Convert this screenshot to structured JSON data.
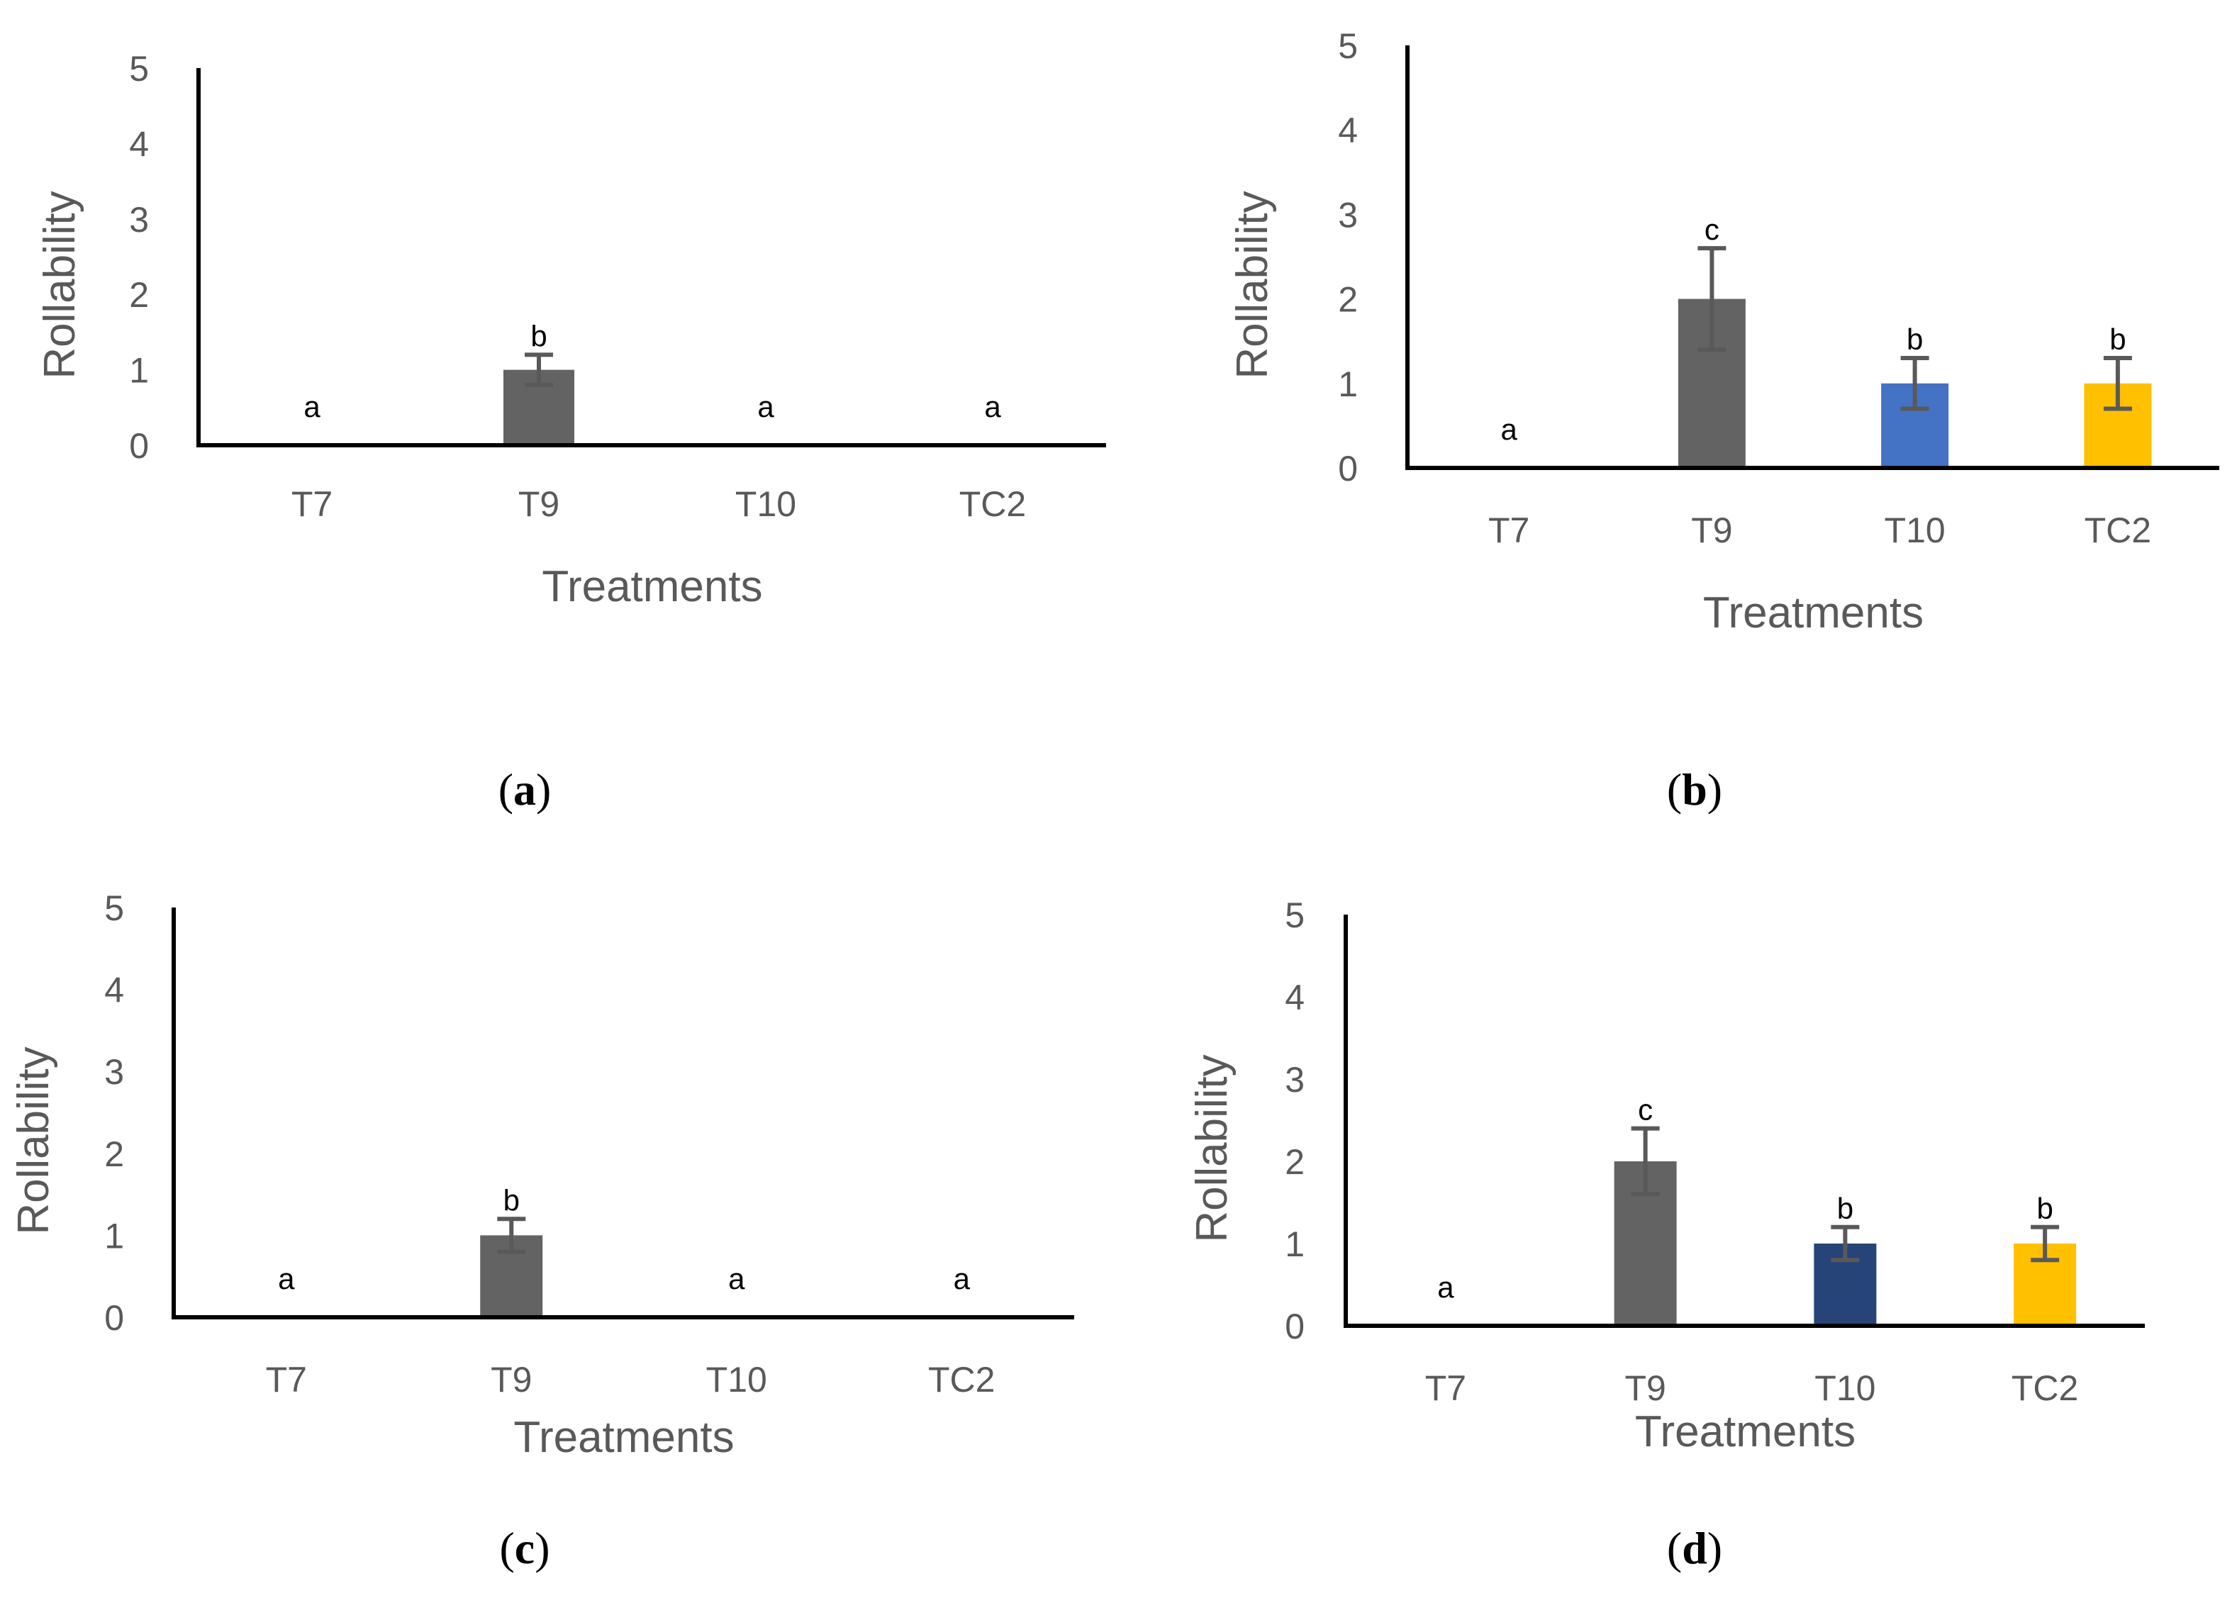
{
  "chart_data": [
    {
      "type": "bar",
      "panel": "a",
      "categories": [
        "T7",
        "T9",
        "T10",
        "TC2"
      ],
      "values": [
        0,
        1,
        0,
        0
      ],
      "error": [
        0,
        0.2,
        0,
        0
      ],
      "letters": [
        "a",
        "b",
        "a",
        "a"
      ],
      "colors": [
        "#636363",
        "#636363",
        "#636363",
        "#636363"
      ],
      "xlabel": "Treatments",
      "ylabel": "Rollability",
      "ylim": [
        0,
        5
      ],
      "yticks": [
        "0",
        "1",
        "2",
        "3",
        "4",
        "5"
      ],
      "grid": false
    },
    {
      "type": "bar",
      "panel": "b",
      "categories": [
        "T7",
        "T9",
        "T10",
        "TC2"
      ],
      "values": [
        0,
        2,
        1,
        1
      ],
      "error": [
        0,
        0.6,
        0.3,
        0.3
      ],
      "letters": [
        "a",
        "c",
        "b",
        "b"
      ],
      "colors": [
        "#636363",
        "#636363",
        "#4472c4",
        "#ffc000"
      ],
      "xlabel": "Treatments",
      "ylabel": "Rollability",
      "ylim": [
        0,
        5
      ],
      "yticks": [
        "0",
        "1",
        "2",
        "3",
        "4",
        "5"
      ],
      "grid": false
    },
    {
      "type": "bar",
      "panel": "c",
      "categories": [
        "T7",
        "T9",
        "T10",
        "TC2"
      ],
      "values": [
        0,
        1,
        0,
        0
      ],
      "error": [
        0,
        0.2,
        0,
        0
      ],
      "letters": [
        "a",
        "b",
        "a",
        "a"
      ],
      "colors": [
        "#636363",
        "#636363",
        "#636363",
        "#636363"
      ],
      "xlabel": "Treatments",
      "ylabel": "Rollability",
      "ylim": [
        0,
        5
      ],
      "yticks": [
        "0",
        "1",
        "2",
        "3",
        "4",
        "5"
      ],
      "grid": false
    },
    {
      "type": "bar",
      "panel": "d",
      "categories": [
        "T7",
        "T9",
        "T10",
        "TC2"
      ],
      "values": [
        0,
        2,
        1,
        1
      ],
      "error": [
        0,
        0.4,
        0.2,
        0.2
      ],
      "letters": [
        "a",
        "c",
        "b",
        "b"
      ],
      "colors": [
        "#636363",
        "#636363",
        "#264478",
        "#ffc000"
      ],
      "xlabel": "Treatments",
      "ylabel": "Rollability",
      "ylim": [
        0,
        5
      ],
      "yticks": [
        "0",
        "1",
        "2",
        "3",
        "4",
        "5"
      ],
      "grid": false
    }
  ],
  "captions": [
    "a",
    "b",
    "c",
    "d"
  ],
  "colors": {
    "axis": "#000000",
    "text": "#595959",
    "error_bar": "#595959"
  }
}
